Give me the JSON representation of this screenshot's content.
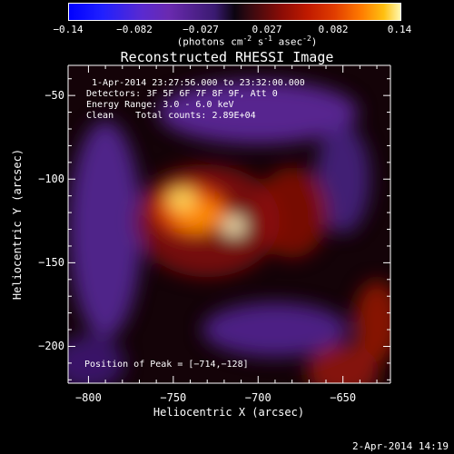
{
  "colorbar": {
    "ticks": [
      "-0.14",
      "-0.082",
      "-0.027",
      "0.027",
      "0.082",
      "0.14"
    ],
    "unit_prefix": "(photons cm",
    "unit_sup1": "-2",
    "unit_mid": " s",
    "unit_sup2": "-1",
    "unit_mid2": " asec",
    "unit_sup3": "-2",
    "unit_suffix": ")"
  },
  "chart_data": {
    "type": "heatmap",
    "title": "Reconstructed RHESSI Image",
    "xlabel": "Heliocentric X (arcsec)",
    "ylabel": "Heliocentric Y (arcsec)",
    "xlim": [
      -812,
      -622
    ],
    "ylim": [
      -222,
      -32
    ],
    "x_ticks": [
      -800,
      -750,
      -700,
      -650
    ],
    "y_ticks": [
      -50,
      -100,
      -150,
      -200
    ],
    "x_tick_labels": [
      "−800",
      "−750",
      "−700",
      "−650"
    ],
    "y_tick_labels": [
      "−50",
      "−100",
      "−150",
      "−200"
    ],
    "value_range": [
      -0.14,
      0.14
    ],
    "peak": [
      -714,
      -128
    ],
    "info_lines": [
      " 1-Apr-2014 23:27:56.000 to 23:32:00.000",
      "Detectors: 3F 5F 6F 7F 8F 9F, Att 0",
      "Energy Range: 3.0 - 6.0 keV",
      "Clean    Total counts: 2.89E+04"
    ],
    "peak_text": "Position of Peak = [−714,−128]"
  },
  "footer": {
    "timestamp": "2-Apr-2014 14:19"
  }
}
